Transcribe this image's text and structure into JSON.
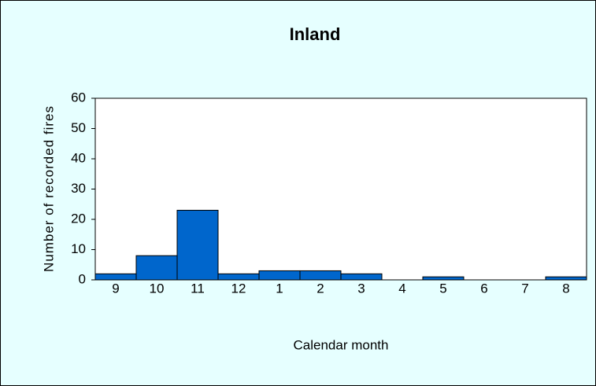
{
  "chart_data": {
    "type": "bar",
    "title": "Inland",
    "x_label": "Calendar month",
    "y_label": "Number of recorded fires",
    "categories": [
      "9",
      "10",
      "11",
      "12",
      "1",
      "2",
      "3",
      "4",
      "5",
      "6",
      "7",
      "8"
    ],
    "values": [
      2,
      8,
      23,
      2,
      3,
      3,
      2,
      0,
      1,
      0,
      0,
      1
    ],
    "color": "#0066cc",
    "ylim": [
      0,
      60
    ],
    "yticks": [
      0,
      10,
      20,
      30,
      40,
      50,
      60
    ],
    "grid": false
  }
}
